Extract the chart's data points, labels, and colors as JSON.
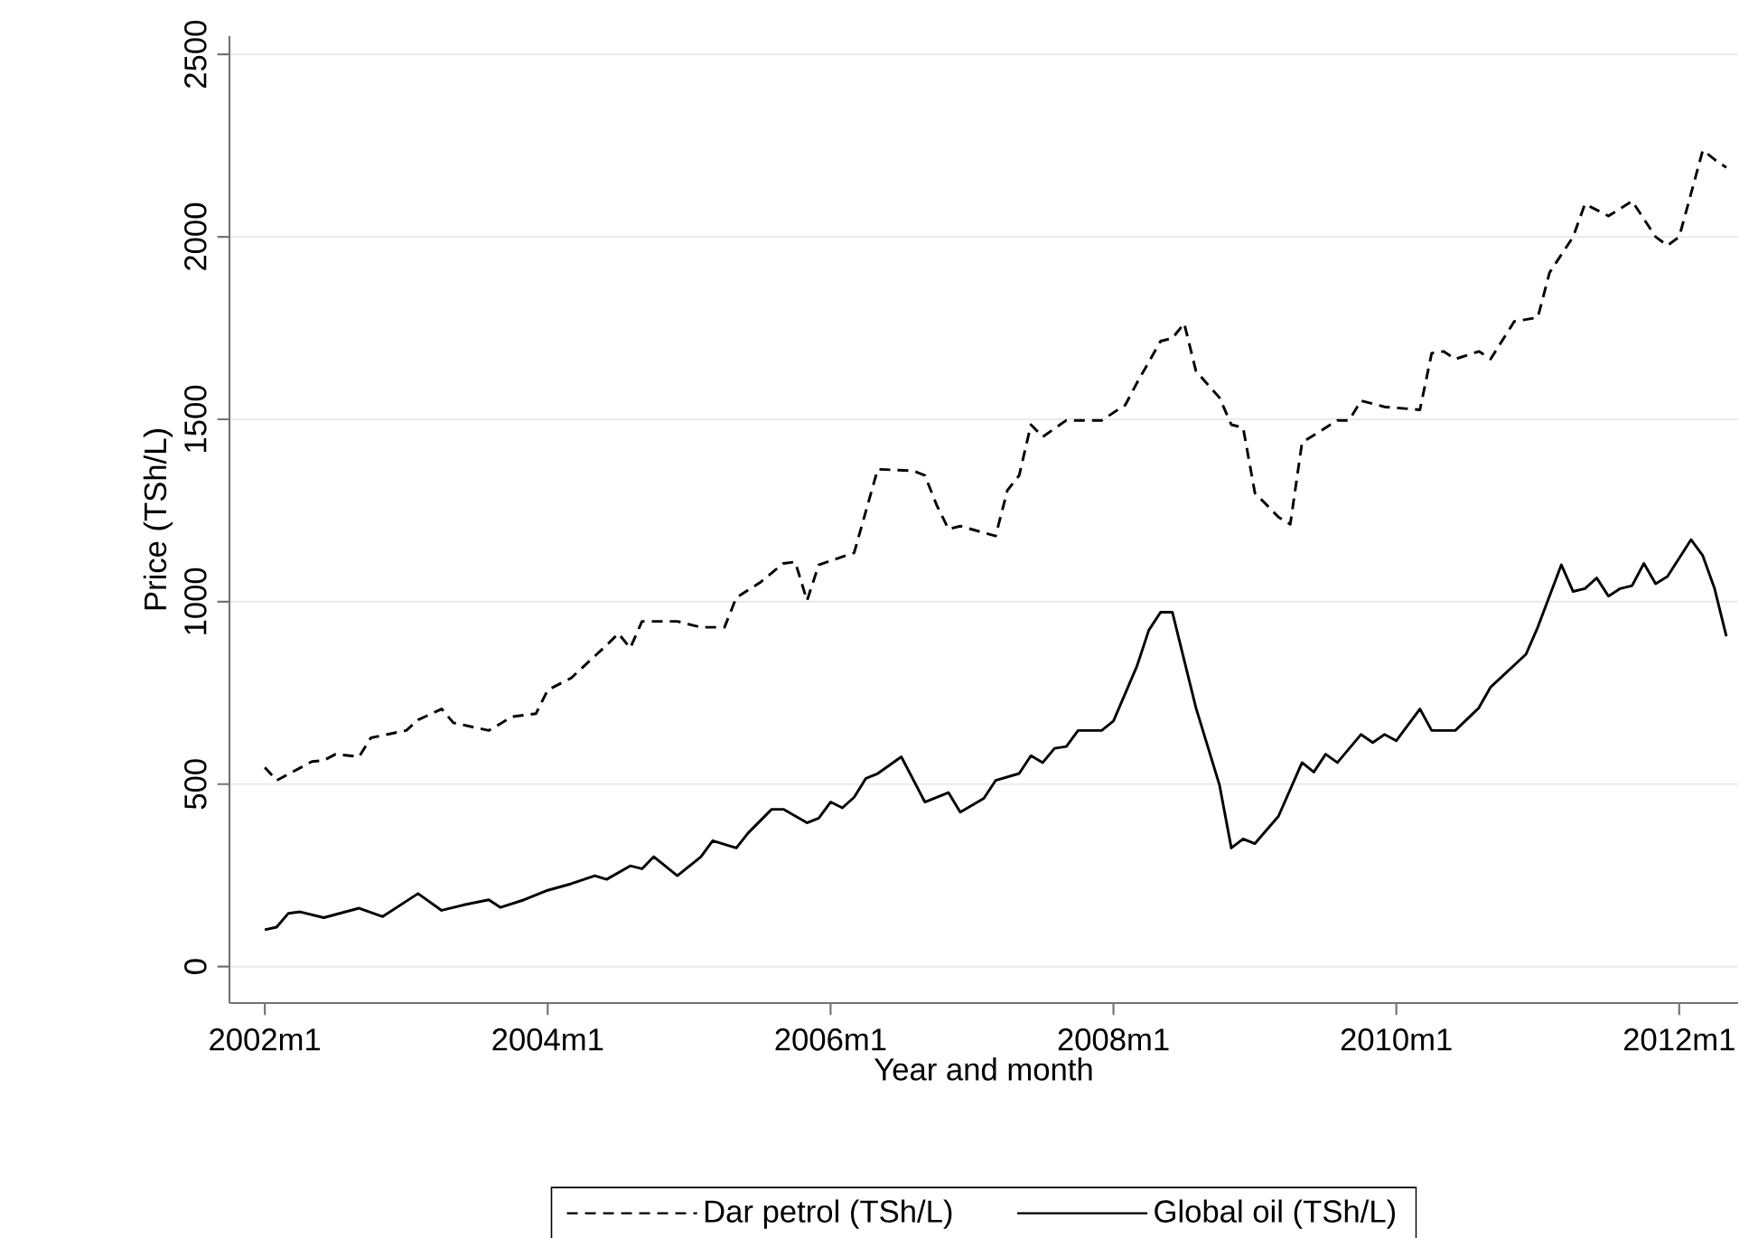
{
  "chart_data": {
    "type": "line",
    "xlabel": "Year and month",
    "ylabel": "Price (TSh/L)",
    "xlim": [
      "2001-10",
      "2012-06"
    ],
    "ylim": [
      -100,
      2550
    ],
    "xticks": [
      {
        "value": "2002-01",
        "label": "2002m1"
      },
      {
        "value": "2004-01",
        "label": "2004m1"
      },
      {
        "value": "2006-01",
        "label": "2006m1"
      },
      {
        "value": "2008-01",
        "label": "2008m1"
      },
      {
        "value": "2010-01",
        "label": "2010m1"
      },
      {
        "value": "2012-01",
        "label": "2012m1"
      }
    ],
    "yticks": [
      0,
      500,
      1000,
      1500,
      2000,
      2500
    ],
    "grid": "y",
    "legend": "bottom",
    "marker": "none",
    "series": [
      {
        "name": "Dar petrol (TSh/L)",
        "color": "#000000",
        "line_style": "dashed",
        "x": [
          "2002-01",
          "2002-02",
          "2002-05",
          "2002-06",
          "2002-07",
          "2002-09",
          "2002-10",
          "2003-01",
          "2003-02",
          "2003-04",
          "2003-05",
          "2003-08",
          "2003-10",
          "2003-12",
          "2004-01",
          "2004-03",
          "2004-06",
          "2004-07",
          "2004-08",
          "2004-09",
          "2004-12",
          "2005-02",
          "2005-04",
          "2005-05",
          "2005-07",
          "2005-09",
          "2005-10",
          "2005-11",
          "2005-12",
          "2006-03",
          "2006-05",
          "2006-08",
          "2006-09",
          "2006-10",
          "2006-11",
          "2006-12",
          "2007-03",
          "2007-04",
          "2007-05",
          "2007-06",
          "2007-07",
          "2007-09",
          "2007-12",
          "2008-02",
          "2008-03",
          "2008-05",
          "2008-06",
          "2008-07",
          "2008-08",
          "2008-10",
          "2008-11",
          "2008-12",
          "2009-01",
          "2009-03",
          "2009-04",
          "2009-05",
          "2009-08",
          "2009-09",
          "2009-10",
          "2009-12",
          "2010-03",
          "2010-04",
          "2010-05",
          "2010-06",
          "2010-08",
          "2010-09",
          "2010-11",
          "2011-01",
          "2011-02",
          "2011-04",
          "2011-05",
          "2011-07",
          "2011-09",
          "2011-11",
          "2011-12",
          "2012-01",
          "2012-03",
          "2012-04",
          "2012-05"
        ],
        "values": [
          546,
          510,
          562,
          565,
          582,
          575,
          627,
          647,
          676,
          706,
          668,
          647,
          685,
          693,
          758,
          791,
          881,
          913,
          873,
          946,
          946,
          930,
          930,
          1011,
          1052,
          1105,
          1109,
          1003,
          1101,
          1134,
          1363,
          1359,
          1346,
          1265,
          1199,
          1207,
          1180,
          1305,
          1346,
          1485,
          1452,
          1497,
          1497,
          1539,
          1600,
          1714,
          1722,
          1763,
          1632,
          1559,
          1485,
          1477,
          1298,
          1232,
          1212,
          1436,
          1497,
          1497,
          1551,
          1534,
          1526,
          1681,
          1686,
          1665,
          1686,
          1665,
          1768,
          1779,
          1902,
          2000,
          2090,
          2057,
          2098,
          2000,
          1976,
          2000,
          2237,
          2212,
          2190
        ]
      },
      {
        "name": "Global oil (TSh/L)",
        "color": "#000000",
        "line_style": "solid",
        "x": [
          "2002-01",
          "2002-02",
          "2002-03",
          "2002-04",
          "2002-06",
          "2002-09",
          "2002-11",
          "2003-02",
          "2003-04",
          "2003-06",
          "2003-08",
          "2003-09",
          "2003-11",
          "2004-01",
          "2004-03",
          "2004-05",
          "2004-06",
          "2004-08",
          "2004-09",
          "2004-10",
          "2004-12",
          "2005-02",
          "2005-03",
          "2005-05",
          "2005-06",
          "2005-08",
          "2005-09",
          "2005-11",
          "2005-12",
          "2006-01",
          "2006-02",
          "2006-03",
          "2006-04",
          "2006-05",
          "2006-07",
          "2006-09",
          "2006-10",
          "2006-11",
          "2006-12",
          "2007-02",
          "2007-03",
          "2007-05",
          "2007-06",
          "2007-07",
          "2007-08",
          "2007-09",
          "2007-10",
          "2007-12",
          "2008-01",
          "2008-03",
          "2008-04",
          "2008-05",
          "2008-06",
          "2008-08",
          "2008-10",
          "2008-11",
          "2008-12",
          "2009-01",
          "2009-03",
          "2009-05",
          "2009-06",
          "2009-07",
          "2009-08",
          "2009-10",
          "2009-11",
          "2009-12",
          "2010-01",
          "2010-03",
          "2010-04",
          "2010-06",
          "2010-08",
          "2010-09",
          "2010-12",
          "2011-01",
          "2011-03",
          "2011-04",
          "2011-05",
          "2011-06",
          "2011-07",
          "2011-08",
          "2011-09",
          "2011-10",
          "2011-11",
          "2011-12",
          "2012-02",
          "2012-03",
          "2012-04",
          "2012-05"
        ],
        "values": [
          101,
          108,
          146,
          150,
          134,
          160,
          137,
          200,
          154,
          170,
          183,
          162,
          183,
          209,
          227,
          249,
          239,
          276,
          268,
          301,
          249,
          301,
          345,
          325,
          366,
          431,
          431,
          394,
          407,
          451,
          435,
          464,
          516,
          529,
          575,
          451,
          464,
          477,
          423,
          461,
          510,
          529,
          578,
          559,
          598,
          603,
          647,
          647,
          673,
          824,
          922,
          971,
          971,
          709,
          497,
          325,
          350,
          337,
          412,
          559,
          533,
          582,
          559,
          636,
          614,
          636,
          619,
          706,
          647,
          647,
          709,
          766,
          856,
          930,
          1101,
          1028,
          1036,
          1065,
          1015,
          1036,
          1044,
          1105,
          1049,
          1069,
          1170,
          1126,
          1036,
          905
        ]
      }
    ]
  }
}
